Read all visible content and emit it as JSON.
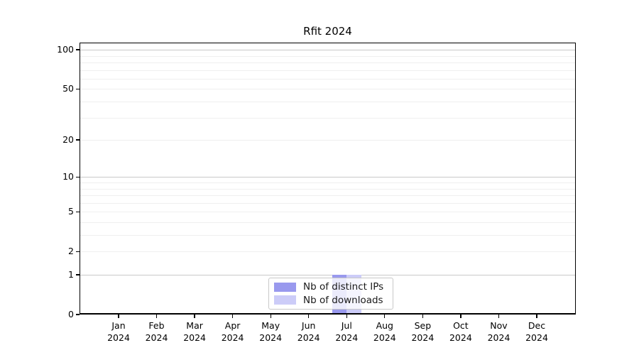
{
  "title": "Rfit 2024",
  "colors": {
    "distinct_ips": "#9999ee",
    "downloads": "#ccccf8",
    "grid_major": "#c9c9c9",
    "grid_minor": "#efefef",
    "axis": "#000000"
  },
  "legend": {
    "items": [
      {
        "label": "Nb of distinct IPs",
        "color_key": "distinct_ips"
      },
      {
        "label": "Nb of downloads",
        "color_key": "downloads"
      }
    ]
  },
  "y_axis": {
    "scale": "log10(1+x)",
    "max_value": 113.5,
    "ticks": [
      {
        "label": "100",
        "value": 100
      },
      {
        "label": "50",
        "value": 50
      },
      {
        "label": "20",
        "value": 20
      },
      {
        "label": "10",
        "value": 10
      },
      {
        "label": "5",
        "value": 5
      },
      {
        "label": "2",
        "value": 2
      },
      {
        "label": "1",
        "value": 1
      },
      {
        "label": "0",
        "value": 0
      }
    ],
    "major_grid_values": [
      1,
      10,
      100
    ],
    "minor_grid_values": [
      2,
      3,
      4,
      5,
      6,
      7,
      8,
      9,
      20,
      30,
      40,
      50,
      60,
      70,
      80,
      90
    ]
  },
  "x_axis": {
    "months": [
      "Jan",
      "Feb",
      "Mar",
      "Apr",
      "May",
      "Jun",
      "Jul",
      "Aug",
      "Sep",
      "Oct",
      "Nov",
      "Dec"
    ],
    "year": "2024"
  },
  "chart_data": {
    "type": "bar",
    "title": "Rfit 2024",
    "categories": [
      "Jan 2024",
      "Feb 2024",
      "Mar 2024",
      "Apr 2024",
      "May 2024",
      "Jun 2024",
      "Jul 2024",
      "Aug 2024",
      "Sep 2024",
      "Oct 2024",
      "Nov 2024",
      "Dec 2024"
    ],
    "series": [
      {
        "name": "Nb of distinct IPs",
        "color": "#9999ee",
        "values": [
          0,
          0,
          0,
          0,
          0,
          0,
          1,
          0,
          0,
          0,
          0,
          0
        ]
      },
      {
        "name": "Nb of downloads",
        "color": "#ccccf8",
        "values": [
          0,
          0,
          0,
          0,
          0,
          0,
          1,
          0,
          0,
          0,
          0,
          0
        ]
      }
    ],
    "xlabel": "",
    "ylabel": "",
    "y_scale": "log10(1+x)",
    "y_ticks": [
      0,
      1,
      2,
      5,
      10,
      20,
      50,
      100
    ],
    "ylim": [
      0,
      113.5
    ],
    "grid": "horizontal",
    "legend_position": "bottom-center"
  }
}
